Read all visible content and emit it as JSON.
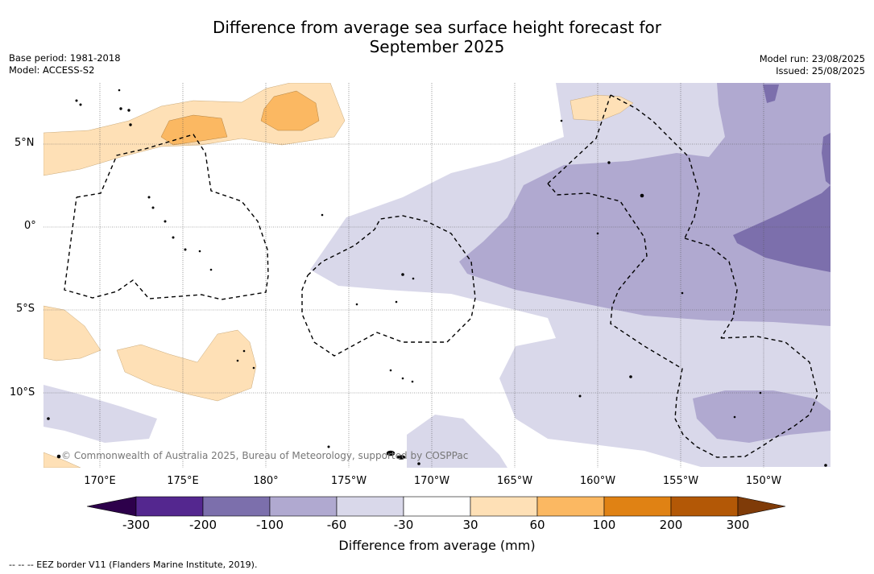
{
  "title_line1": "Difference from average sea surface height forecast for",
  "title_line2": "September 2025",
  "meta_left": [
    "Base period: 1981-2018",
    "Model: ACCESS-S2"
  ],
  "meta_right": [
    "Model run: 23/08/2025",
    "Issued: 25/08/2025"
  ],
  "lat_labels": [
    "5°N",
    "0°",
    "5°S",
    "10°S"
  ],
  "lon_labels": [
    "170°E",
    "175°E",
    "180°",
    "175°W",
    "170°W",
    "165°W",
    "160°W",
    "155°W",
    "150°W"
  ],
  "copyright": "© Commonwealth of Australia 2025, Bureau of Meteorology, supported by COSPPac",
  "colorbar": {
    "ticks": [
      "-300",
      "-200",
      "-100",
      "-60",
      "-30",
      "30",
      "60",
      "100",
      "200",
      "300"
    ],
    "colors": [
      "#54278f",
      "#7c6fac",
      "#b0a9d0",
      "#d9d8ea",
      "#ffffff",
      "#fee0b6",
      "#fbb862",
      "#e08214",
      "#b35806"
    ],
    "under_color": "#2d004b",
    "over_color": "#7f3b08",
    "label": "Difference from average (mm)"
  },
  "legend_text": "--  --  -- EEZ border V11 (Flanders Marine Institute, 2019)."
}
